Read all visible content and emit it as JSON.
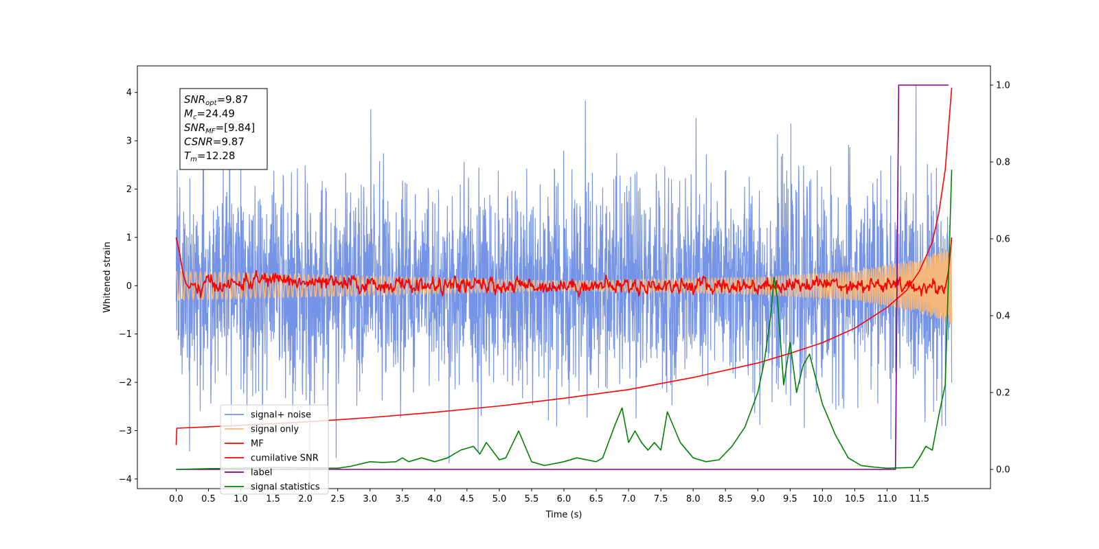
{
  "chart_data": {
    "type": "line",
    "xlabel": "Time (s)",
    "ylabel": "Whitened strain",
    "xlim": [
      -0.6,
      12.6
    ],
    "ylim": [
      -4.2,
      4.55
    ],
    "ylim_right": [
      -0.05,
      1.05
    ],
    "x_ticks": [
      "0.0",
      "0.5",
      "1.0",
      "1.5",
      "2.0",
      "2.5",
      "3.0",
      "3.5",
      "4.0",
      "4.5",
      "5.0",
      "5.5",
      "6.0",
      "6.5",
      "7.0",
      "7.5",
      "8.0",
      "8.5",
      "9.0",
      "9.5",
      "10.0",
      "10.5",
      "11.0",
      "11.5"
    ],
    "y_ticks": [
      "4",
      "3",
      "2",
      "1",
      "0",
      "−1",
      "−2",
      "−3",
      "−4"
    ],
    "y_ticks_right": [
      "1.0",
      "0.8",
      "0.6",
      "0.4",
      "0.2",
      "0.0"
    ],
    "legend_position": "lower-left",
    "grid": false,
    "info_box": {
      "lines": [
        {
          "base": "SNR",
          "sub": "opt",
          "value": "=9.87"
        },
        {
          "base": "M",
          "sub": "c",
          "value": "=24.49"
        },
        {
          "base": "SNR",
          "sub": "MF",
          "value": "=[9.84]"
        },
        {
          "base": "CSNR",
          "sub": "",
          "value": "=9.87"
        },
        {
          "base": "T",
          "sub": "m",
          "value": "=12.28"
        }
      ]
    },
    "series": [
      {
        "name": "signal+ noise",
        "color": "#7593e7",
        "axis": "left",
        "style": "noise",
        "sigma": 1.05,
        "envelope_peak": 4.15,
        "x_range": [
          0.0,
          12.0
        ]
      },
      {
        "name": "signal only",
        "color": "#f5b87a",
        "axis": "left",
        "style": "chirp",
        "amplitude_points": [
          [
            0.0,
            0.3
          ],
          [
            6.0,
            0.1
          ],
          [
            9.0,
            0.18
          ],
          [
            10.5,
            0.3
          ],
          [
            11.5,
            0.55
          ],
          [
            12.0,
            0.8
          ]
        ],
        "x_range": [
          0.0,
          12.0
        ]
      },
      {
        "name": "MF",
        "color": "#ff0000",
        "axis": "left",
        "style": "mf",
        "points": [
          [
            0.0,
            1.0
          ],
          [
            0.05,
            0.7
          ],
          [
            0.1,
            0.3
          ],
          [
            0.15,
            0.05
          ],
          [
            0.2,
            -0.05
          ],
          [
            0.3,
            -0.08
          ],
          [
            0.5,
            0.05
          ],
          [
            0.8,
            0.0
          ],
          [
            1.2,
            0.1
          ],
          [
            1.6,
            0.15
          ],
          [
            2.0,
            0.05
          ],
          [
            3.0,
            0.02
          ],
          [
            4.0,
            0.0
          ],
          [
            6.0,
            0.0
          ],
          [
            9.0,
            0.0
          ],
          [
            10.0,
            0.05
          ],
          [
            11.0,
            0.0
          ],
          [
            11.9,
            -0.05
          ],
          [
            11.95,
            0.3
          ],
          [
            12.0,
            1.0
          ]
        ],
        "wiggle": 0.09
      },
      {
        "name": "cumilative SNR",
        "color": "#ff0000",
        "axis": "left",
        "points": [
          [
            0.0,
            -3.3
          ],
          [
            0.01,
            -2.95
          ],
          [
            0.5,
            -2.92
          ],
          [
            1.0,
            -2.89
          ],
          [
            2.0,
            -2.82
          ],
          [
            3.0,
            -2.73
          ],
          [
            4.0,
            -2.62
          ],
          [
            5.0,
            -2.49
          ],
          [
            6.0,
            -2.33
          ],
          [
            7.0,
            -2.15
          ],
          [
            8.0,
            -1.9
          ],
          [
            9.0,
            -1.6
          ],
          [
            9.5,
            -1.4
          ],
          [
            10.0,
            -1.18
          ],
          [
            10.5,
            -0.88
          ],
          [
            11.0,
            -0.45
          ],
          [
            11.3,
            -0.1
          ],
          [
            11.5,
            0.3
          ],
          [
            11.7,
            0.9
          ],
          [
            11.8,
            1.5
          ],
          [
            11.9,
            2.4
          ],
          [
            12.0,
            4.1
          ]
        ]
      },
      {
        "name": "label",
        "color": "#800080",
        "axis": "right",
        "points": [
          [
            0.0,
            0.0
          ],
          [
            11.13,
            0.0
          ],
          [
            11.18,
            1.0
          ],
          [
            11.95,
            1.0
          ]
        ]
      },
      {
        "name": "signal statistics",
        "color": "#008000",
        "axis": "right",
        "points": [
          [
            0.0,
            0.0
          ],
          [
            0.5,
            0.002
          ],
          [
            1.0,
            0.003
          ],
          [
            1.5,
            0.005
          ],
          [
            2.0,
            0.004
          ],
          [
            2.5,
            0.003
          ],
          [
            2.7,
            0.008
          ],
          [
            3.0,
            0.02
          ],
          [
            3.2,
            0.018
          ],
          [
            3.4,
            0.02
          ],
          [
            3.5,
            0.03
          ],
          [
            3.6,
            0.02
          ],
          [
            3.8,
            0.03
          ],
          [
            4.0,
            0.02
          ],
          [
            4.2,
            0.03
          ],
          [
            4.4,
            0.05
          ],
          [
            4.6,
            0.06
          ],
          [
            4.7,
            0.04
          ],
          [
            4.8,
            0.07
          ],
          [
            5.0,
            0.025
          ],
          [
            5.1,
            0.03
          ],
          [
            5.3,
            0.1
          ],
          [
            5.4,
            0.06
          ],
          [
            5.5,
            0.02
          ],
          [
            5.7,
            0.01
          ],
          [
            6.0,
            0.02
          ],
          [
            6.2,
            0.03
          ],
          [
            6.5,
            0.02
          ],
          [
            6.6,
            0.03
          ],
          [
            6.8,
            0.12
          ],
          [
            6.9,
            0.16
          ],
          [
            7.0,
            0.07
          ],
          [
            7.1,
            0.1
          ],
          [
            7.2,
            0.07
          ],
          [
            7.3,
            0.05
          ],
          [
            7.4,
            0.07
          ],
          [
            7.5,
            0.05
          ],
          [
            7.6,
            0.15
          ],
          [
            7.8,
            0.07
          ],
          [
            8.0,
            0.03
          ],
          [
            8.2,
            0.02
          ],
          [
            8.4,
            0.025
          ],
          [
            8.6,
            0.06
          ],
          [
            8.8,
            0.11
          ],
          [
            9.0,
            0.2
          ],
          [
            9.1,
            0.28
          ],
          [
            9.2,
            0.4
          ],
          [
            9.25,
            0.5
          ],
          [
            9.3,
            0.45
          ],
          [
            9.4,
            0.22
          ],
          [
            9.5,
            0.33
          ],
          [
            9.6,
            0.2
          ],
          [
            9.7,
            0.27
          ],
          [
            9.8,
            0.3
          ],
          [
            10.0,
            0.17
          ],
          [
            10.2,
            0.09
          ],
          [
            10.4,
            0.03
          ],
          [
            10.6,
            0.01
          ],
          [
            10.8,
            0.006
          ],
          [
            11.0,
            0.003
          ],
          [
            11.4,
            0.005
          ],
          [
            11.5,
            0.03
          ],
          [
            11.6,
            0.06
          ],
          [
            11.7,
            0.05
          ],
          [
            11.8,
            0.14
          ],
          [
            11.9,
            0.22
          ],
          [
            11.95,
            0.5
          ],
          [
            12.0,
            0.78
          ]
        ]
      }
    ]
  }
}
